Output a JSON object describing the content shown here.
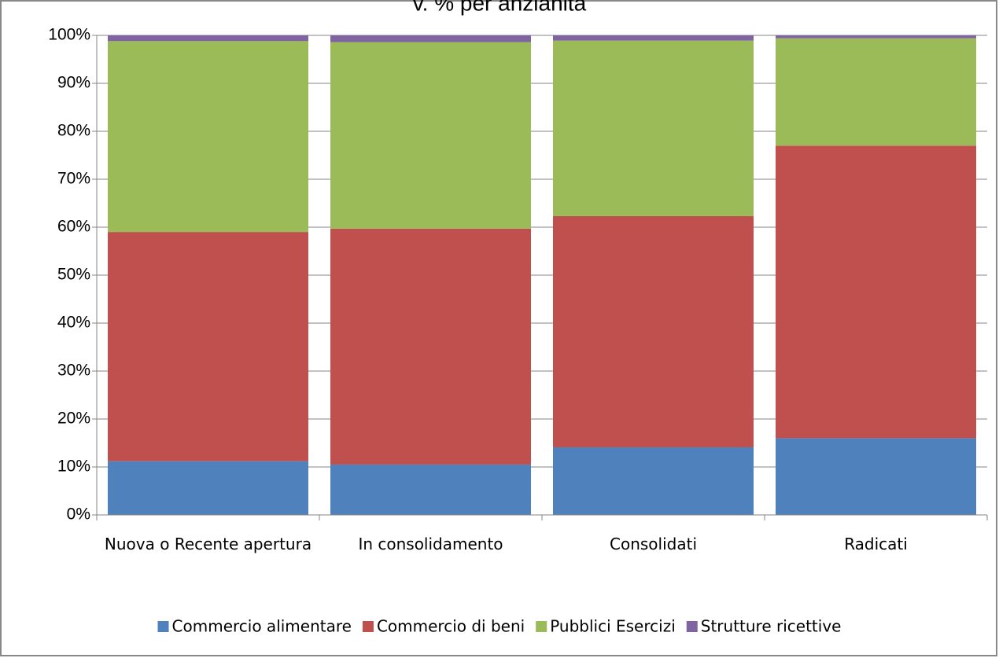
{
  "chart_data": {
    "type": "stacked_bar",
    "title": "v. % per anzianità",
    "categories": [
      "Nuova o Recente apertura",
      "In consolidamento",
      "Consolidati",
      "Radicati"
    ],
    "series": [
      {
        "name": "Commercio alimentare",
        "color": "#4f81bd",
        "values": [
          11.2,
          10.5,
          14.1,
          16
        ]
      },
      {
        "name": "Commercio di beni",
        "color": "#c0504d",
        "values": [
          47.8,
          49.2,
          48.2,
          61
        ]
      },
      {
        "name": "Pubblici Esercizi",
        "color": "#9bbb59",
        "values": [
          39.8,
          38.9,
          36.6,
          22.4
        ]
      },
      {
        "name": "Strutture ricettive",
        "color": "#8064a2",
        "values": [
          1.2,
          1.4,
          1.1,
          0.6
        ]
      }
    ],
    "ylim": [
      0,
      100
    ],
    "yticks": [
      {
        "value": 0,
        "label": "0%"
      },
      {
        "value": 10,
        "label": "10%"
      },
      {
        "value": 20,
        "label": "20%"
      },
      {
        "value": 30,
        "label": "30%"
      },
      {
        "value": 40,
        "label": "40%"
      },
      {
        "value": 50,
        "label": "50%"
      },
      {
        "value": 60,
        "label": "60%"
      },
      {
        "value": 70,
        "label": "70%"
      },
      {
        "value": 80,
        "label": "80%"
      },
      {
        "value": 90,
        "label": "90%"
      },
      {
        "value": 100,
        "label": "100%"
      }
    ],
    "grid": true,
    "legend": "bottom"
  }
}
